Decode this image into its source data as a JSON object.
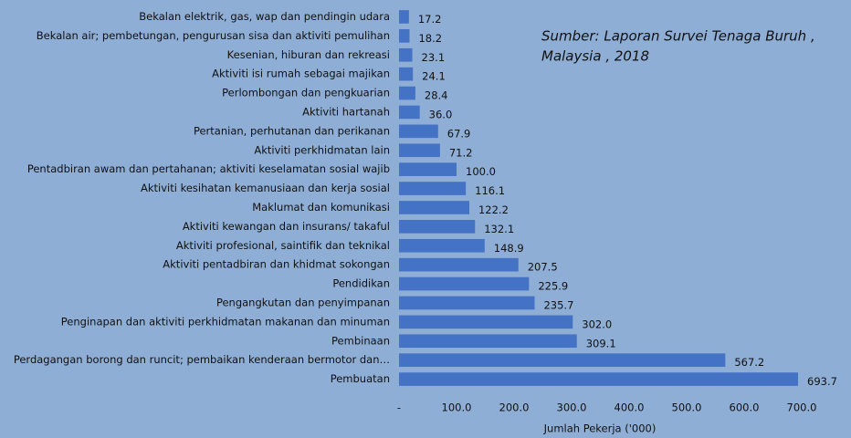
{
  "chart_data": {
    "type": "bar",
    "orientation": "horizontal",
    "categories": [
      "Bekalan  elektrik, gas, wap dan pendingin udara",
      "Bekalan air; pembetungan, pengurusan  sisa dan aktiviti pemulihan",
      "Kesenian, hiburan dan rekreasi",
      "Aktiviti isi rumah sebagai majikan",
      "Perlombongan dan pengkuarian",
      "Aktiviti hartanah",
      "Pertanian, perhutanan dan  perikanan",
      "Aktiviti perkhidmatan lain",
      "Pentadbiran awam dan pertahanan; aktiviti keselamatan sosial wajib",
      "Aktiviti kesihatan kemanusiaan dan kerja sosial",
      "Maklumat dan komunikasi",
      "Aktiviti kewangan dan insurans/ takaful",
      "Aktiviti profesional, saintifik dan teknikal",
      "Aktiviti pentadbiran dan khidmat sokongan",
      "Pendidikan",
      "Pengangkutan dan penyimpanan",
      "Penginapan dan aktiviti perkhidmatan makanan dan minuman",
      "Pembinaan",
      "Perdagangan borong dan runcit; pembaikan kenderaan  bermotor dan…",
      "Pembuatan"
    ],
    "values": [
      17.2,
      18.2,
      23.1,
      24.1,
      28.4,
      36.0,
      67.9,
      71.2,
      100.0,
      116.1,
      122.2,
      132.1,
      148.9,
      207.5,
      225.9,
      235.7,
      302.0,
      309.1,
      567.2,
      693.7
    ],
    "value_labels": [
      "17.2",
      "18.2",
      "23.1",
      "24.1",
      "28.4",
      "36.0",
      "67.9",
      "71.2",
      "100.0",
      "116.1",
      "122.2",
      "132.1",
      "148.9",
      "207.5",
      "225.9",
      "235.7",
      "302.0",
      "309.1",
      "567.2",
      "693.7"
    ],
    "color": "#4472c4",
    "xlim": [
      0,
      700
    ],
    "xticks": [
      {
        "value": 0,
        "label": "-"
      },
      {
        "value": 100,
        "label": "100.0"
      },
      {
        "value": 200,
        "label": "200.0"
      },
      {
        "value": 300,
        "label": "300.0"
      },
      {
        "value": 400,
        "label": "400.0"
      },
      {
        "value": 500,
        "label": "500.0"
      },
      {
        "value": 600,
        "label": "600.0"
      },
      {
        "value": 700,
        "label": "700.0"
      }
    ],
    "xlabel": "Jumlah Pekerja ('000)",
    "annotation": [
      "Sumber: Laporan Survei Tenaga Buruh ,",
      "Malaysia , 2018"
    ],
    "grid": false
  }
}
